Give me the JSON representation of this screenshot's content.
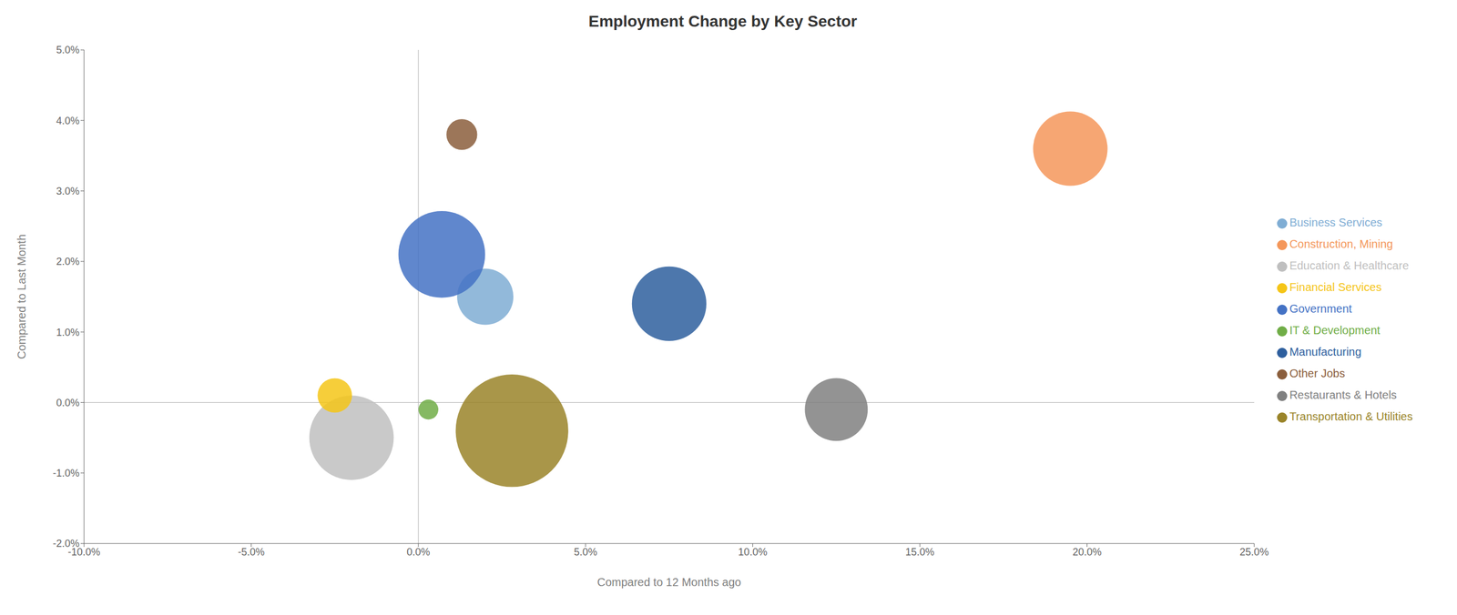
{
  "chart_data": {
    "type": "bubble",
    "title": "Employment Change by Key Sector",
    "xlabel": "Compared to 12 Months ago",
    "ylabel": "Compared to Last Month",
    "xlim": [
      -0.1,
      0.25
    ],
    "ylim": [
      -0.02,
      0.05
    ],
    "xticks": [
      {
        "value": -0.1,
        "label": "-10.0%"
      },
      {
        "value": -0.05,
        "label": "-5.0%"
      },
      {
        "value": 0.0,
        "label": "0.0%"
      },
      {
        "value": 0.05,
        "label": "5.0%"
      },
      {
        "value": 0.1,
        "label": "10.0%"
      },
      {
        "value": 0.15,
        "label": "15.0%"
      },
      {
        "value": 0.2,
        "label": "20.0%"
      },
      {
        "value": 0.25,
        "label": "25.0%"
      }
    ],
    "yticks": [
      {
        "value": -0.02,
        "label": "-2.0%"
      },
      {
        "value": -0.01,
        "label": "-1.0%"
      },
      {
        "value": 0.0,
        "label": "0.0%"
      },
      {
        "value": 0.01,
        "label": "1.0%"
      },
      {
        "value": 0.02,
        "label": "2.0%"
      },
      {
        "value": 0.03,
        "label": "3.0%"
      },
      {
        "value": 0.04,
        "label": "4.0%"
      },
      {
        "value": 0.05,
        "label": "5.0%"
      }
    ],
    "series": [
      {
        "name": "Business Services",
        "color": "#7fadd4",
        "x": [
          0.02
        ],
        "values": [
          0.015
        ],
        "size": [
          4000
        ]
      },
      {
        "name": "Construction, Mining",
        "color": "#f4975a",
        "x": [
          0.195
        ],
        "values": [
          0.036
        ],
        "size": [
          7000
        ]
      },
      {
        "name": "Education & Healthcare",
        "color": "#bfbfbf",
        "x": [
          -0.02
        ],
        "values": [
          -0.005
        ],
        "size": [
          9000
        ]
      },
      {
        "name": "Financial Services",
        "color": "#f5c518",
        "x": [
          -0.025
        ],
        "values": [
          0.001
        ],
        "size": [
          1500
        ]
      },
      {
        "name": "Government",
        "color": "#4472c4",
        "x": [
          0.007
        ],
        "values": [
          0.021
        ],
        "size": [
          9500
        ]
      },
      {
        "name": "IT & Development",
        "color": "#70ad47",
        "x": [
          0.003
        ],
        "values": [
          -0.001
        ],
        "size": [
          500
        ]
      },
      {
        "name": "Manufacturing",
        "color": "#2e5f9e",
        "x": [
          0.075
        ],
        "values": [
          0.014
        ],
        "size": [
          7000
        ]
      },
      {
        "name": "Other Jobs",
        "color": "#8b5e3c",
        "x": [
          0.013
        ],
        "values": [
          0.038
        ],
        "size": [
          1200
        ]
      },
      {
        "name": "Restaurants & Hotels",
        "color": "#808080",
        "x": [
          0.125
        ],
        "values": [
          -0.001
        ],
        "size": [
          5000
        ]
      },
      {
        "name": "Transportation & Utilities",
        "color": "#9a8429",
        "x": [
          0.028
        ],
        "values": [
          -0.004
        ],
        "size": [
          16000
        ]
      }
    ],
    "grid": false,
    "legend": "right"
  }
}
